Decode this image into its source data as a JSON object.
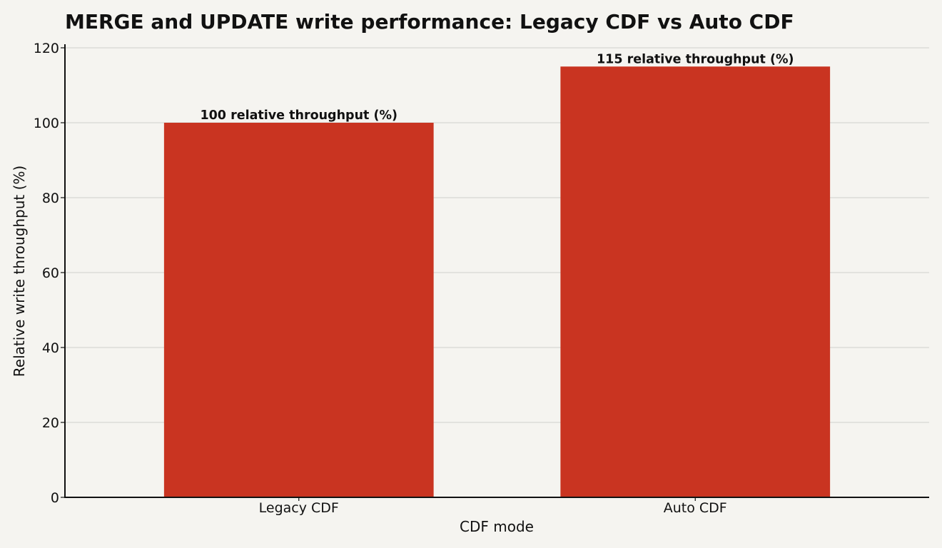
{
  "chart_data": {
    "type": "bar",
    "title": "MERGE and UPDATE write performance: Legacy CDF vs Auto CDF",
    "xlabel": "CDF mode",
    "ylabel": "Relative write throughput (%)",
    "categories": [
      "Legacy CDF",
      "Auto CDF"
    ],
    "values": [
      100,
      115
    ],
    "data_labels": [
      "100 relative throughput (%)",
      "115 relative throughput (%)"
    ],
    "ylim": [
      0,
      120
    ],
    "yticks": [
      0,
      20,
      40,
      60,
      80,
      100,
      120
    ],
    "grid": true,
    "legend": "none",
    "colors": {
      "bar": "#c93421",
      "background": "#f5f4f0",
      "grid": "#dcdcd8",
      "text": "#111111"
    }
  }
}
